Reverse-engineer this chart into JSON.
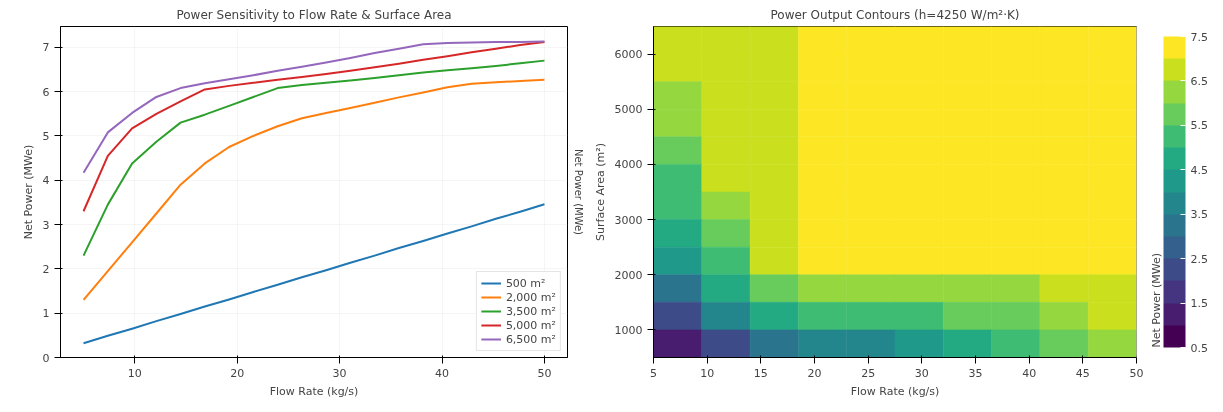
{
  "chart_data": [
    {
      "type": "line",
      "title": "Power Sensitivity to Flow Rate & Surface Area",
      "xlabel": "Flow Rate (kg/s)",
      "ylabel": "Net Power (MWe)",
      "annotations": [
        "Net Power (MWe)"
      ],
      "x": [
        5,
        7.37,
        9.74,
        12.11,
        14.47,
        16.84,
        19.21,
        21.58,
        23.95,
        26.32,
        28.68,
        31.05,
        33.42,
        35.79,
        38.16,
        40.53,
        42.89,
        45.26,
        47.63,
        50
      ],
      "series": [
        {
          "name": "500 m²",
          "color": "#1f77b4",
          "values": [
            0.32,
            0.49,
            0.65,
            0.82,
            0.98,
            1.15,
            1.31,
            1.48,
            1.64,
            1.81,
            1.97,
            2.14,
            2.3,
            2.47,
            2.63,
            2.8,
            2.96,
            3.13,
            3.29,
            3.46
          ]
        },
        {
          "name": "2,000 m²",
          "color": "#ff7f0e",
          "values": [
            1.3,
            1.95,
            2.6,
            3.25,
            3.9,
            4.38,
            4.75,
            5.0,
            5.22,
            5.4,
            5.52,
            5.63,
            5.75,
            5.87,
            5.98,
            6.1,
            6.18,
            6.21,
            6.24,
            6.27
          ]
        },
        {
          "name": "3,500 m²",
          "color": "#2ca02c",
          "values": [
            2.3,
            3.45,
            4.38,
            4.87,
            5.3,
            5.48,
            5.68,
            5.88,
            6.08,
            6.15,
            6.2,
            6.25,
            6.31,
            6.37,
            6.43,
            6.48,
            6.53,
            6.58,
            6.64,
            6.7
          ]
        },
        {
          "name": "5,000 m²",
          "color": "#d62728",
          "values": [
            3.3,
            4.55,
            5.17,
            5.5,
            5.78,
            6.05,
            6.13,
            6.2,
            6.27,
            6.33,
            6.4,
            6.47,
            6.55,
            6.63,
            6.72,
            6.8,
            6.89,
            6.97,
            7.05,
            7.12
          ]
        },
        {
          "name": "6,500 m²",
          "color": "#9467bd",
          "values": [
            4.17,
            5.08,
            5.52,
            5.88,
            6.08,
            6.19,
            6.28,
            6.37,
            6.47,
            6.56,
            6.66,
            6.76,
            6.87,
            6.97,
            7.07,
            7.1,
            7.11,
            7.12,
            7.12,
            7.13
          ]
        }
      ],
      "xlim": [
        2.75,
        52.25
      ],
      "ylim": [
        0,
        7.47
      ],
      "xticks": [
        10,
        20,
        30,
        40,
        50
      ],
      "yticks": [
        0,
        1,
        2,
        3,
        4,
        5,
        6,
        7
      ],
      "grid": true,
      "legend": "bottom right",
      "line_style": "solid"
    },
    {
      "type": "heatmap",
      "title": "Power Output Contours (h=4250 W/m²·K)",
      "xlabel": "Flow Rate (kg/s)",
      "ylabel": "Surface Area (m²)",
      "clabel": "Net Power (MWe)",
      "x": [
        7.25,
        11.75,
        16.25,
        20.75,
        25.25,
        29.75,
        34.25,
        38.75,
        43.25,
        47.75
      ],
      "y": [
        6250,
        5750,
        5250,
        4750,
        4250,
        3750,
        3250,
        2750,
        2250,
        1750,
        1250,
        750
      ],
      "cells": [
        [
          6.8,
          6.8,
          6.8,
          7.2,
          7.2,
          7.2,
          7.2,
          7.2,
          7.2,
          7.2
        ],
        [
          6.6,
          6.8,
          6.8,
          7.2,
          7.2,
          7.2,
          7.2,
          7.2,
          7.2,
          7.2
        ],
        [
          6.3,
          6.8,
          6.8,
          7.2,
          7.2,
          7.2,
          7.2,
          7.2,
          7.2,
          7.2
        ],
        [
          6.0,
          6.8,
          6.8,
          7.2,
          7.2,
          7.2,
          7.2,
          7.2,
          7.2,
          7.2
        ],
        [
          5.7,
          6.7,
          6.8,
          7.2,
          7.2,
          7.2,
          7.2,
          7.2,
          7.2,
          7.2
        ],
        [
          5.4,
          6.6,
          6.8,
          7.2,
          7.2,
          7.2,
          7.2,
          7.2,
          7.2,
          7.2
        ],
        [
          5.0,
          6.3,
          6.8,
          7.2,
          7.2,
          7.2,
          7.2,
          7.2,
          7.2,
          7.2
        ],
        [
          4.6,
          5.9,
          6.8,
          7.2,
          7.2,
          7.2,
          7.2,
          7.2,
          7.2,
          7.2
        ],
        [
          4.0,
          5.4,
          6.6,
          7.2,
          7.2,
          7.2,
          7.2,
          7.2,
          7.2,
          7.2
        ],
        [
          3.3,
          4.6,
          5.8,
          6.3,
          6.3,
          6.3,
          6.3,
          6.4,
          6.5,
          6.7
        ],
        [
          2.4,
          3.6,
          4.7,
          5.0,
          5.2,
          5.4,
          5.6,
          5.9,
          6.2,
          6.5
        ],
        [
          1.3,
          2.2,
          3.1,
          3.5,
          3.8,
          4.2,
          4.6,
          5.0,
          5.5,
          6.0
        ]
      ],
      "xlim": [
        5,
        50
      ],
      "ylim": [
        500,
        6500
      ],
      "xticks": [
        5,
        10,
        15,
        20,
        25,
        30,
        35,
        40,
        45,
        50
      ],
      "yticks": [
        1000,
        2000,
        3000,
        4000,
        5000,
        6000
      ],
      "clim": [
        0.5,
        7.5
      ],
      "cticks": [
        0.5,
        1.5,
        2.5,
        3.5,
        4.5,
        5.5,
        6.5,
        7.5
      ]
    }
  ]
}
